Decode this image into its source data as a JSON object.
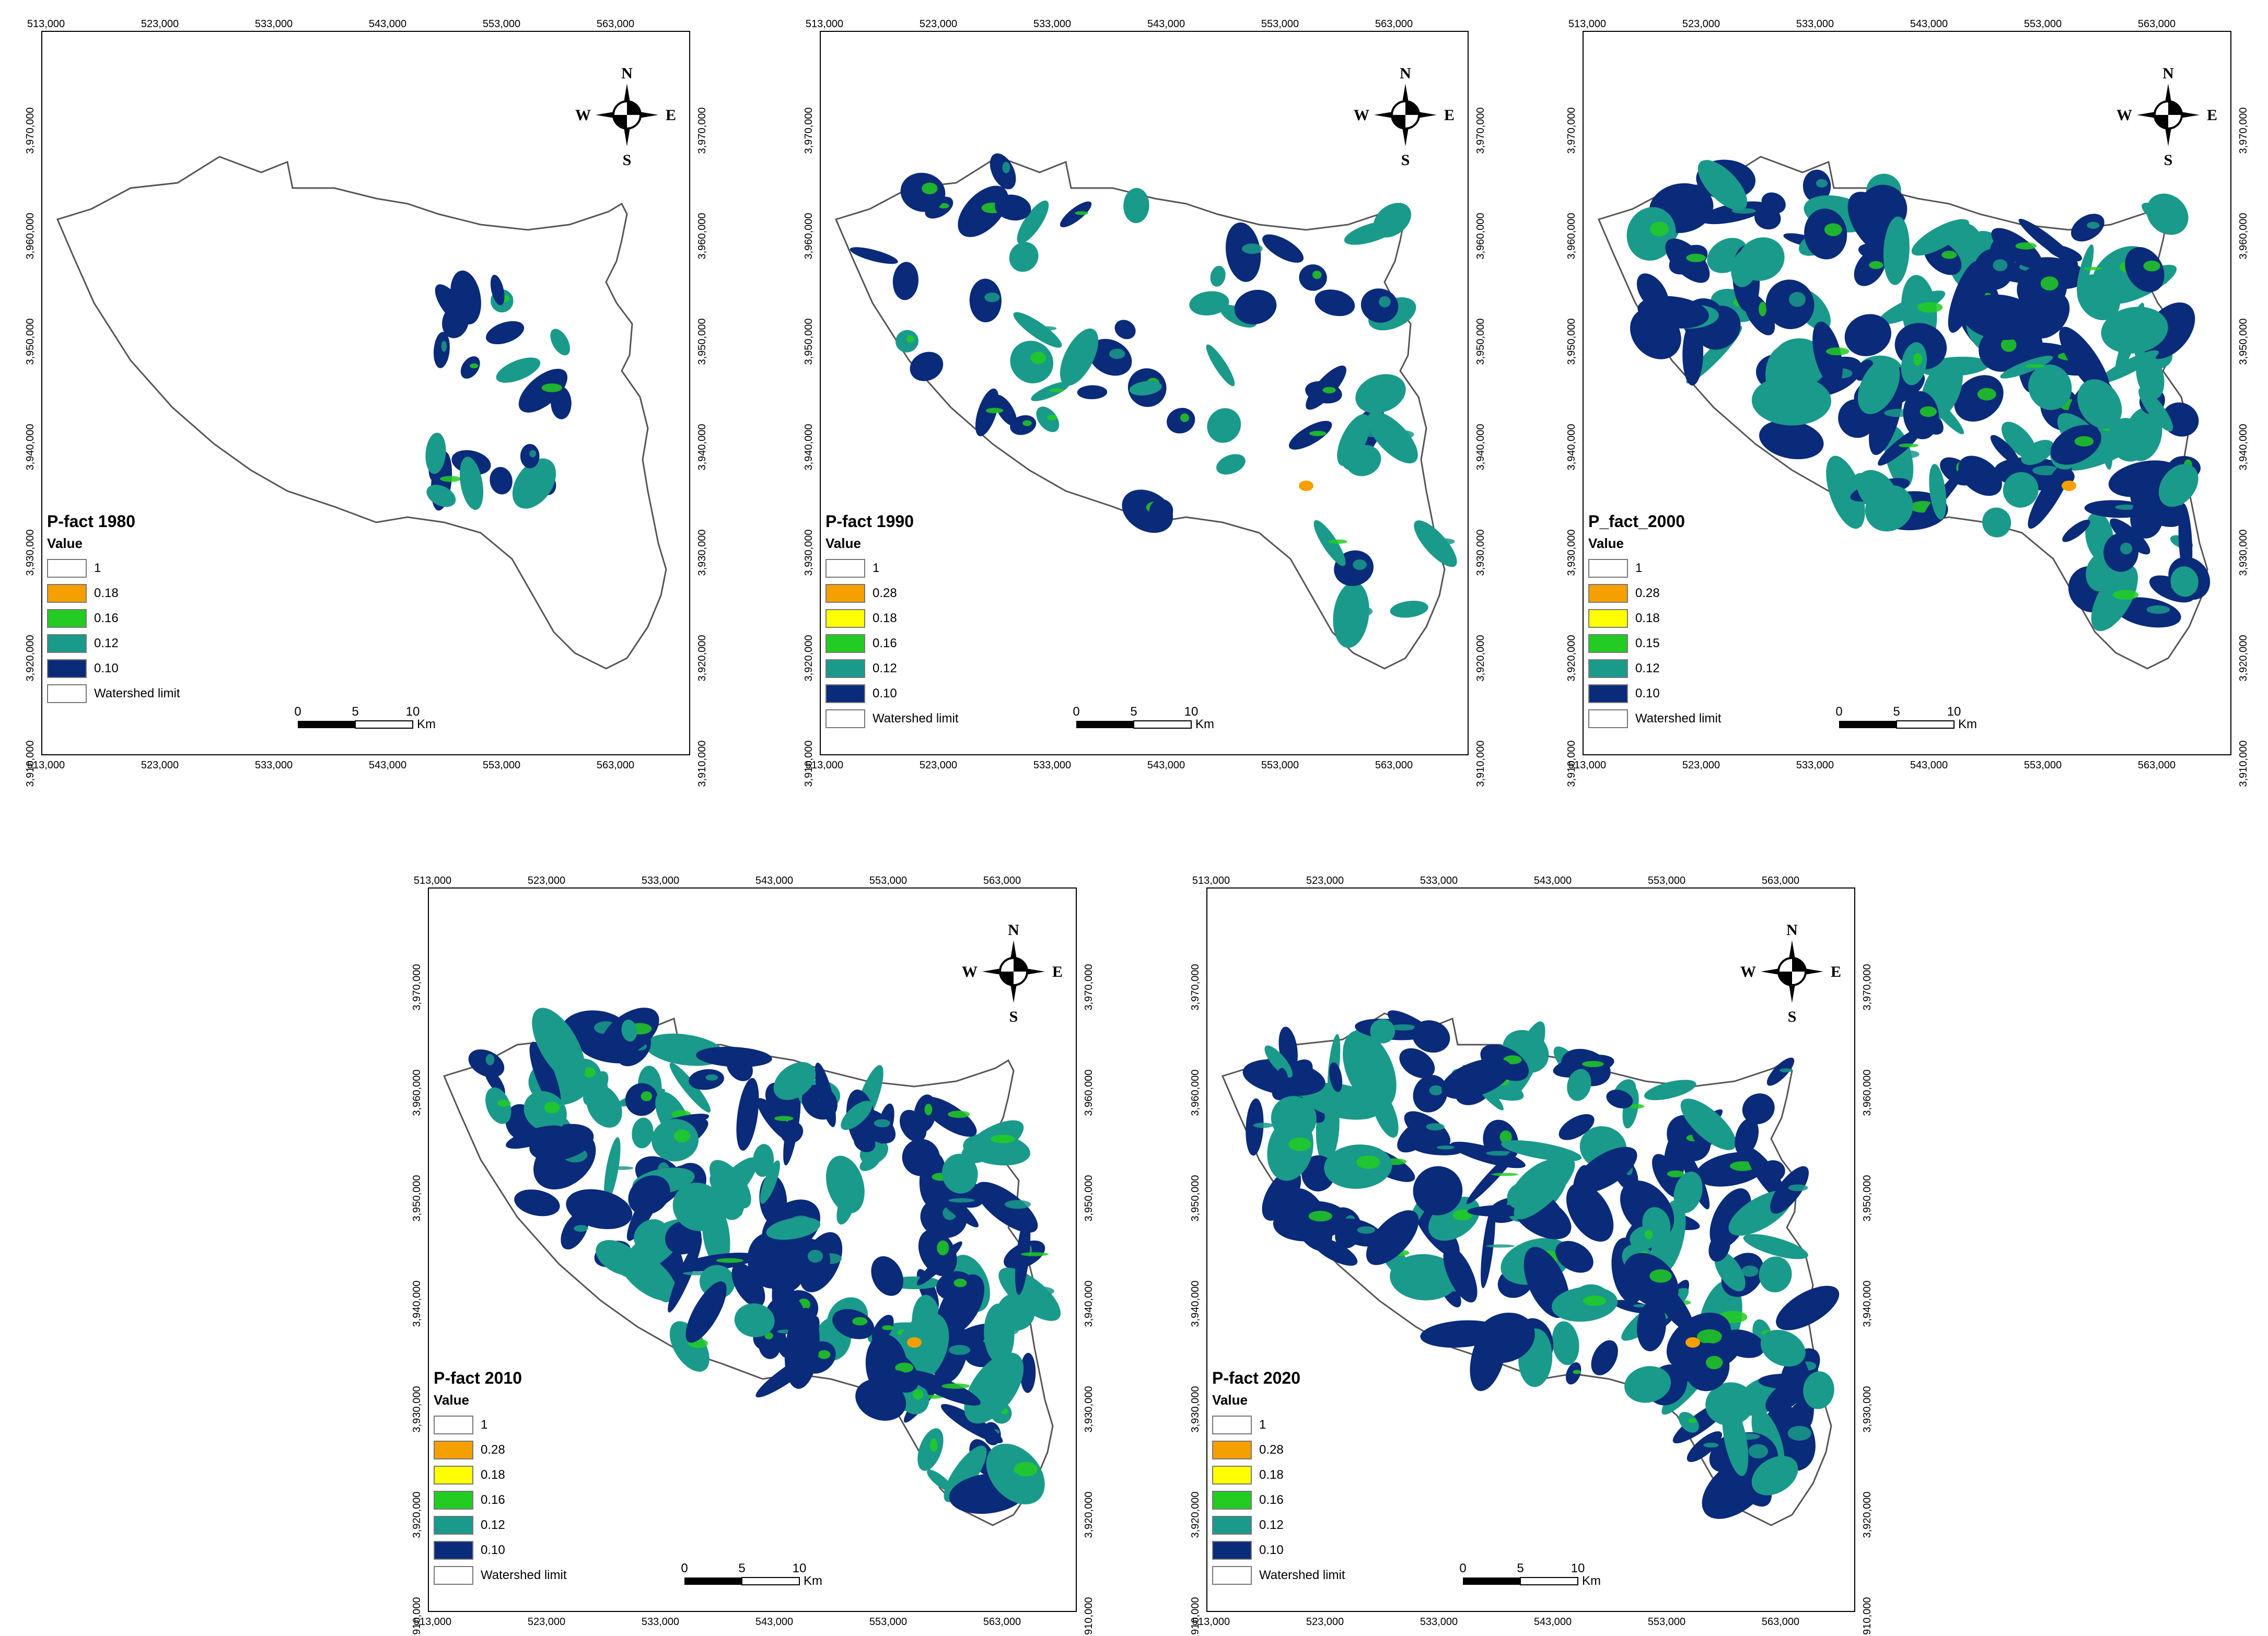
{
  "palette": {
    "navy": "#0a2a7a",
    "teal": "#1a9a8a",
    "green": "#22cc22",
    "yellow": "#ffff00",
    "orange": "#f5a000",
    "white": "#ffffff",
    "outline": "#555555"
  },
  "x_ticks": [
    "513,000",
    "523,000",
    "533,000",
    "543,000",
    "553,000",
    "563,000"
  ],
  "y_ticks": [
    "3,970,000",
    "3,960,000",
    "3,950,000",
    "3,940,000",
    "3,930,000",
    "3,920,000",
    "3,910,000"
  ],
  "compass": {
    "n": "N",
    "s": "S",
    "e": "E",
    "w": "W",
    "icon": "north-arrow-icon"
  },
  "scale_bar": {
    "labels": [
      "0",
      "5",
      "10"
    ],
    "unit": "Km"
  },
  "maps": [
    {
      "title": "P-fact 1980",
      "value_label": "Value",
      "legend": [
        {
          "label": "1",
          "color": "#ffffff"
        },
        {
          "label": "0.18",
          "color": "#f5a000"
        },
        {
          "label": "0.16",
          "color": "#22cc22"
        },
        {
          "label": "0.12",
          "color": "#1a9a8a"
        },
        {
          "label": "0.10",
          "color": "#0a2a7a"
        },
        {
          "label": "Watershed limit",
          "color": "#ffffff"
        }
      ],
      "coverage": "low"
    },
    {
      "title": "P-fact 1990",
      "value_label": "Value",
      "legend": [
        {
          "label": "1",
          "color": "#ffffff"
        },
        {
          "label": "0.28",
          "color": "#f5a000"
        },
        {
          "label": "0.18",
          "color": "#ffff00"
        },
        {
          "label": "0.16",
          "color": "#22cc22"
        },
        {
          "label": "0.12",
          "color": "#1a9a8a"
        },
        {
          "label": "0.10",
          "color": "#0a2a7a"
        },
        {
          "label": "Watershed limit",
          "color": "#ffffff"
        }
      ],
      "coverage": "medium"
    },
    {
      "title": "P_fact_2000",
      "value_label": "Value",
      "legend": [
        {
          "label": "1",
          "color": "#ffffff"
        },
        {
          "label": "0.28",
          "color": "#f5a000"
        },
        {
          "label": "0.18",
          "color": "#ffff00"
        },
        {
          "label": "0.15",
          "color": "#22cc22"
        },
        {
          "label": "0.12",
          "color": "#1a9a8a"
        },
        {
          "label": "0.10",
          "color": "#0a2a7a"
        },
        {
          "label": "Watershed limit",
          "color": "#ffffff"
        }
      ],
      "coverage": "high"
    },
    {
      "title": "P-fact 2010",
      "value_label": "Value",
      "legend": [
        {
          "label": "1",
          "color": "#ffffff"
        },
        {
          "label": "0.28",
          "color": "#f5a000"
        },
        {
          "label": "0.18",
          "color": "#ffff00"
        },
        {
          "label": "0.16",
          "color": "#22cc22"
        },
        {
          "label": "0.12",
          "color": "#1a9a8a"
        },
        {
          "label": "0.10",
          "color": "#0a2a7a"
        },
        {
          "label": "Watershed limit",
          "color": "#ffffff"
        }
      ],
      "coverage": "high"
    },
    {
      "title": "P-fact 2020",
      "value_label": "Value",
      "legend": [
        {
          "label": "1",
          "color": "#ffffff"
        },
        {
          "label": "0.28",
          "color": "#f5a000"
        },
        {
          "label": "0.18",
          "color": "#ffff00"
        },
        {
          "label": "0.16",
          "color": "#22cc22"
        },
        {
          "label": "0.12",
          "color": "#1a9a8a"
        },
        {
          "label": "0.10",
          "color": "#0a2a7a"
        },
        {
          "label": "Watershed limit",
          "color": "#ffffff"
        }
      ],
      "coverage": "high"
    }
  ]
}
